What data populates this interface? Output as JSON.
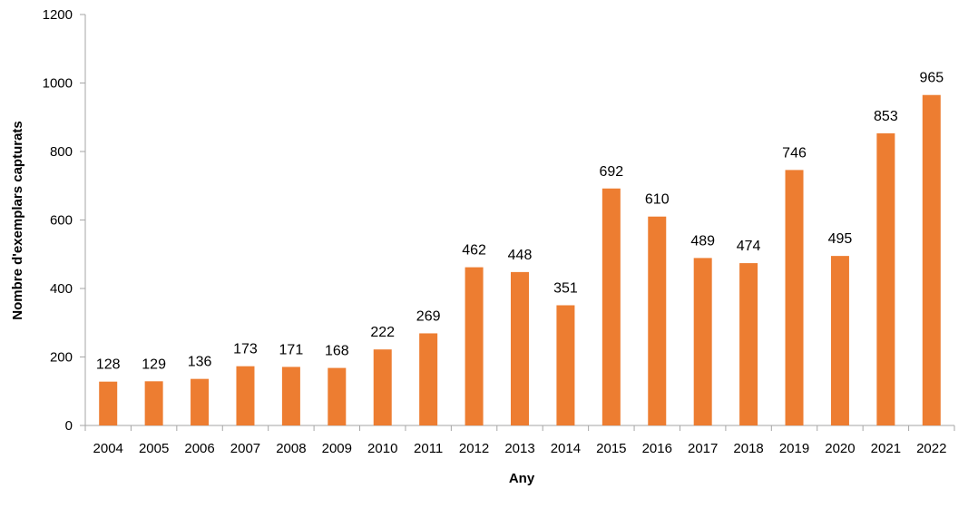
{
  "chart_data": {
    "type": "bar",
    "xlabel": "Any",
    "ylabel": "Nombre d'exemplars capturats",
    "categories": [
      "2004",
      "2005",
      "2006",
      "2007",
      "2008",
      "2009",
      "2010",
      "2011",
      "2012",
      "2013",
      "2014",
      "2015",
      "2016",
      "2017",
      "2018",
      "2019",
      "2020",
      "2021",
      "2022"
    ],
    "values": [
      128,
      129,
      136,
      173,
      171,
      168,
      222,
      269,
      462,
      448,
      351,
      692,
      610,
      489,
      474,
      746,
      495,
      853,
      965
    ],
    "ylim": [
      0,
      1200
    ],
    "yticks": [
      0,
      200,
      400,
      600,
      800,
      1000,
      1200
    ],
    "grid": false,
    "data_labels": true,
    "bar_color": "#ED7D31",
    "axis_color": "#A6A6A6"
  }
}
